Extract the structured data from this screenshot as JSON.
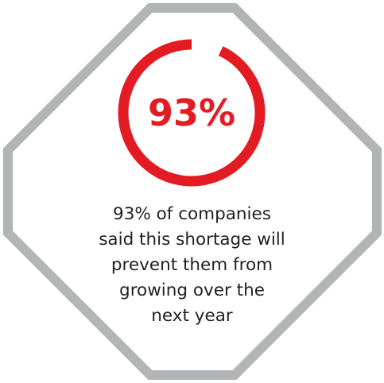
{
  "chart_data": {
    "type": "pie",
    "title": "",
    "categories": [
      "companies"
    ],
    "values": [
      93
    ],
    "max": 100,
    "value_label": "93%",
    "caption_lines": [
      "93% of companies",
      "said this shortage will",
      "prevent them from",
      "growing over the",
      "next year"
    ]
  },
  "colors": {
    "accent": "#e31b23",
    "frame": "#b3b4b6",
    "text": "#231f20",
    "background": "#ffffff"
  }
}
